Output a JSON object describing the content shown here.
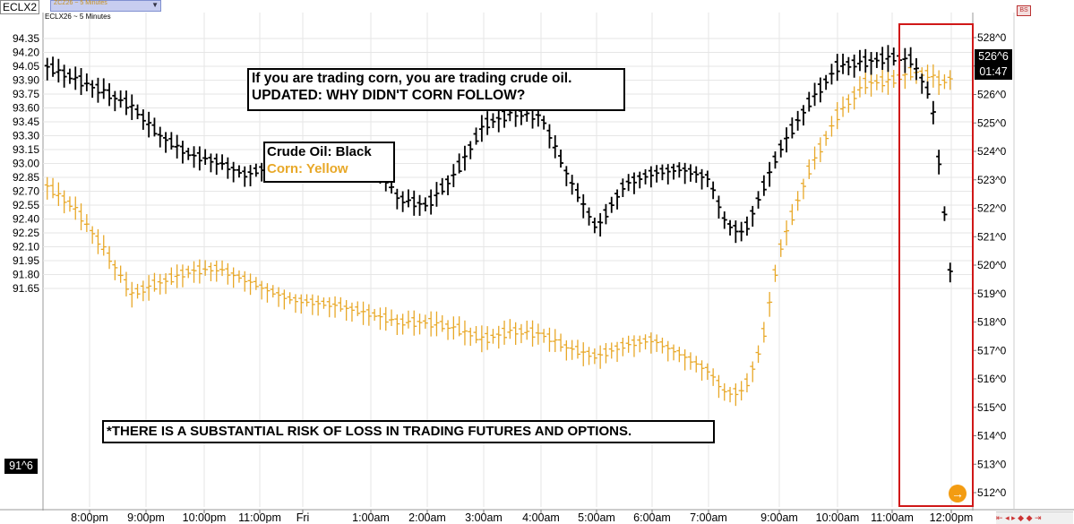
{
  "header": {
    "symbol": "ECLX2",
    "overlay_symbol": "ZCZ26 ~ 5 Minutes",
    "chart_label": "ECLX26 ~ 5 Minutes"
  },
  "annotations": {
    "headline_line1": "If you are trading corn, you are trading crude oil.",
    "headline_line2": "UPDATED: WHY DIDN'T CORN FOLLOW?",
    "legend_crude": "Crude Oil: Black",
    "legend_corn": "Corn: Yellow",
    "disclaimer": "*THERE IS A SUBSTANTIAL RISK OF LOSS IN TRADING FUTURES AND OPTIONS."
  },
  "price_tags": {
    "crude_last": "91^6",
    "corn_last": "526^6",
    "countdown": "01:47"
  },
  "toolbar": {
    "badge": "BS",
    "scroll_arrow_icon": "arrow-right-circle-icon"
  },
  "colors": {
    "crude": "#000000",
    "corn": "#e8a828",
    "highlight_box": "#d01818",
    "grid": "#e6e6e6",
    "orange_button": "#f39c12"
  },
  "chart_data": {
    "type": "line",
    "title": "",
    "x_ticks": [
      "8:00pm",
      "9:00pm",
      "10:00pm",
      "11:00pm",
      "Fri",
      "1:00am",
      "2:00am",
      "3:00am",
      "4:00am",
      "5:00am",
      "6:00am",
      "7:00am",
      "9:00am",
      "10:00am",
      "11:00am",
      "12:00pm"
    ],
    "left_axis": {
      "label": "",
      "ylim": [
        91.6,
        94.4
      ],
      "ticks": [
        "94.35",
        "94.20",
        "94.05",
        "93.90",
        "93.75",
        "93.60",
        "93.45",
        "93.30",
        "93.15",
        "93.00",
        "92.85",
        "92.70",
        "92.55",
        "92.40",
        "92.25",
        "92.10",
        "91.95",
        "91.80",
        "91.65"
      ]
    },
    "right_axis": {
      "label": "",
      "ylim": [
        511.6,
        528.3
      ],
      "ticks": [
        "528^0",
        "527^0",
        "526^0",
        "525^0",
        "524^0",
        "523^0",
        "522^0",
        "521^0",
        "520^0",
        "519^0",
        "518^0",
        "517^0",
        "516^0",
        "515^0",
        "514^0",
        "513^0",
        "512^0"
      ]
    },
    "series": [
      {
        "name": "Crude Oil: Black",
        "axis": "left",
        "x": [
          "7:15pm",
          "7:45pm",
          "8:15pm",
          "8:45pm",
          "9:15pm",
          "9:45pm",
          "10:15pm",
          "10:45pm",
          "11:15pm",
          "11:45pm",
          "12:30am",
          "1:00am",
          "1:30am",
          "2:00am",
          "2:30am",
          "3:00am",
          "3:30am",
          "4:00am",
          "4:30am",
          "5:00am",
          "5:30am",
          "6:00am",
          "6:30am",
          "7:00am",
          "7:30am",
          "8:00am",
          "8:30am",
          "9:00am",
          "9:30am",
          "10:00am",
          "10:30am",
          "11:00am",
          "11:20am",
          "11:40am",
          "11:50am",
          "12:00pm"
        ],
        "values": [
          94.05,
          93.92,
          93.78,
          93.62,
          93.3,
          93.1,
          93.02,
          92.88,
          92.98,
          93.1,
          93.12,
          93.08,
          92.62,
          92.55,
          92.9,
          93.42,
          93.55,
          93.52,
          92.85,
          92.3,
          92.78,
          92.9,
          92.95,
          92.85,
          92.35,
          92.25,
          92.7,
          93.15,
          93.65,
          94.05,
          94.1,
          94.15,
          94.12,
          93.7,
          92.8,
          91.72
        ]
      },
      {
        "name": "Corn: Yellow",
        "axis": "right",
        "x": [
          "7:15pm",
          "7:45pm",
          "8:15pm",
          "8:45pm",
          "9:15pm",
          "9:45pm",
          "10:15pm",
          "10:45pm",
          "11:15pm",
          "11:45pm",
          "12:30am",
          "1:00am",
          "1:30am",
          "2:00am",
          "2:30am",
          "3:00am",
          "3:30am",
          "4:00am",
          "4:30am",
          "5:00am",
          "5:30am",
          "6:00am",
          "6:30am",
          "7:00am",
          "7:30am",
          "8:00am",
          "8:30am",
          "9:00am",
          "9:30am",
          "10:00am",
          "10:30am",
          "11:00am",
          "11:20am",
          "11:40am",
          "11:50am",
          "12:00pm"
        ],
        "values": [
          522.8,
          522.0,
          520.6,
          519.0,
          519.4,
          519.8,
          519.9,
          519.5,
          519.1,
          518.8,
          518.6,
          518.3,
          518.0,
          518.0,
          517.8,
          517.4,
          517.7,
          517.6,
          517.1,
          516.8,
          517.2,
          517.4,
          516.9,
          516.3,
          515.5,
          515.6,
          517.2,
          520.5,
          523.3,
          525.3,
          526.4,
          526.5,
          526.8,
          526.7,
          526.4,
          526.6
        ]
      }
    ],
    "grid": true,
    "legend": "top-left"
  }
}
